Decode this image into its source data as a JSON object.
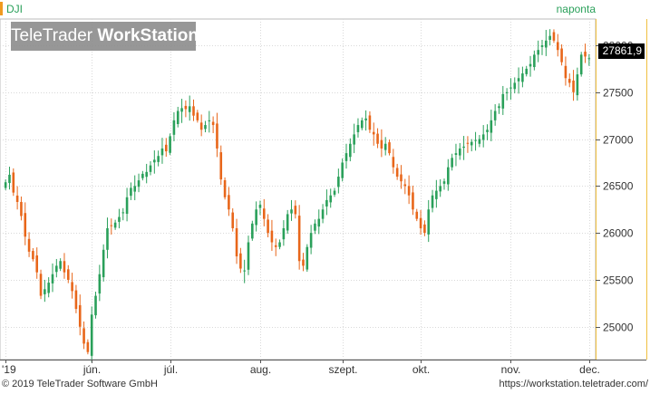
{
  "header": {
    "symbol": "DJI",
    "period": "naponta",
    "watermark_light": "TeleTrader ",
    "watermark_bold": "WorkStation"
  },
  "last_price": "27861,9",
  "footer": {
    "copyright": "© 2019 TeleTrader Software GmbH",
    "url": "https://workstation.teletrader.com/"
  },
  "colors": {
    "up": "#2aa05a",
    "down": "#e8661a",
    "grid": "#d9d9d9",
    "axis": "#555555",
    "price_axis_border": "#f0c040"
  },
  "chart_data": {
    "type": "candlestick",
    "title": "DJI",
    "ylim": [
      24650,
      28280
    ],
    "yticks": [
      25000,
      25500,
      26000,
      26500,
      27000,
      27500,
      28000
    ],
    "ytick_labels": [
      "25000",
      "25500",
      "26000",
      "26500",
      "27000",
      "27500",
      "28000"
    ],
    "xtick_labels": [
      "'19",
      "jún.",
      "júl.",
      "aug.",
      "szept.",
      "okt.",
      "nov.",
      "dec."
    ],
    "xtick_index": [
      0,
      22,
      42,
      65,
      86,
      106,
      129,
      149
    ],
    "grid": true,
    "closes": [
      26540,
      26620,
      26430,
      26330,
      26180,
      25960,
      25800,
      25720,
      25580,
      25330,
      25400,
      25470,
      25560,
      25650,
      25700,
      25580,
      25500,
      25380,
      25190,
      25000,
      24820,
      24730,
      25130,
      25330,
      25560,
      25820,
      26050,
      26080,
      26110,
      26170,
      26220,
      26380,
      26480,
      26500,
      26560,
      26630,
      26650,
      26720,
      26780,
      26820,
      26900,
      26870,
      27030,
      27200,
      27300,
      27330,
      27320,
      27350,
      27250,
      27200,
      27100,
      27150,
      27200,
      27150,
      26900,
      26570,
      26380,
      26250,
      26050,
      25750,
      25620,
      25600,
      25900,
      26100,
      26250,
      26300,
      26150,
      26000,
      25900,
      25850,
      25900,
      26050,
      26200,
      26250,
      26200,
      25700,
      25650,
      25850,
      26000,
      26100,
      26150,
      26250,
      26350,
      26400,
      26450,
      26600,
      26750,
      26850,
      26950,
      27050,
      27150,
      27200,
      27220,
      27100,
      27050,
      26950,
      26900,
      26950,
      26850,
      26700,
      26600,
      26550,
      26500,
      26400,
      26250,
      26150,
      26050,
      26000,
      26250,
      26400,
      26450,
      26500,
      26550,
      26700,
      26800,
      26850,
      26900,
      26920,
      26950,
      26970,
      26990,
      27000,
      27050,
      27100,
      27200,
      27300,
      27350,
      27480,
      27500,
      27550,
      27600,
      27650,
      27700,
      27750,
      27800,
      27900,
      27950,
      28000,
      28050,
      28100,
      28050,
      27950,
      27820,
      27650,
      27600,
      27500,
      27690,
      27900,
      27880,
      27862
    ]
  }
}
